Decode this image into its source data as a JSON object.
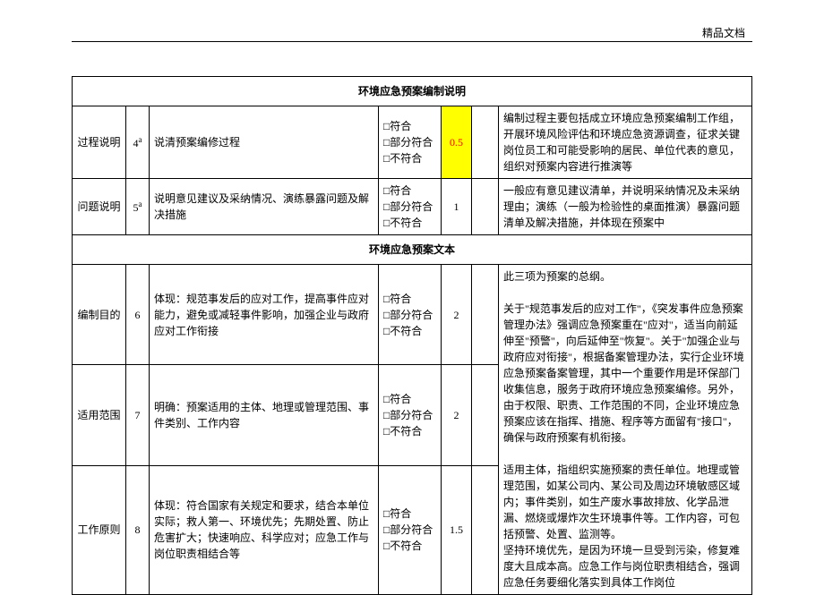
{
  "header_label": "精品文档",
  "section1_title": "环境应急预案编制说明",
  "section2_title": "环境应急预案文本",
  "checkbox_labels": {
    "a": "□符合",
    "b": "□部分符合",
    "c": "□不符合"
  },
  "rows": {
    "r1": {
      "label": "过程说明",
      "num": "4",
      "sup": "a",
      "content": "说清预案编修过程",
      "score": "0.5",
      "remarks": "编制过程主要包括成立环境应急预案编制工作组，开展环境风险评估和环境应急资源调查，征求关键岗位员工和可能受影响的居民、单位代表的意见，组织对预案内容进行推演等"
    },
    "r2": {
      "label": "问题说明",
      "num": "5",
      "sup": "a",
      "content": "说明意见建议及采纳情况、演练暴露问题及解决措施",
      "score": "1",
      "remarks": "一般应有意见建议清单，并说明采纳情况及未采纳理由；演练（一般为检验性的桌面推演）暴露问题清单及解决措施，并体现在预案中"
    },
    "r3": {
      "label": "编制目的",
      "num": "6",
      "content": "体现：规范事发后的应对工作，提高事件应对能力，避免或减轻事件影响，加强企业与政府应对工作衔接",
      "score": "2"
    },
    "r4": {
      "label": "适用范围",
      "num": "7",
      "content": "明确：预案适用的主体、地理或管理范围、事件类别、工作内容",
      "score": "2"
    },
    "r5": {
      "label": "工作原则",
      "num": "8",
      "content": "体现：符合国家有关规定和要求，结合本单位实际；救人第一、环境优先；先期处置、防止危害扩大；快速响应、科学应对；应急工作与岗位职责相结合等",
      "score": "1.5"
    },
    "merged_remark": "此三项为预案的总纲。\n\n关于\"规范事发后的应对工作\"，《突发事件应急预案管理办法》强调应急预案重在\"应对\"，适当向前延伸至\"预警\"，向后延伸至\"恢复\"。关于\"加强企业与政府应对衔接\"，根据备案管理办法，实行企业环境应急预案备案管理，其中一个重要作用是环保部门收集信息，服务于政府环境应急预案编修。另外，由于权限、职责、工作范围的不同，企业环境应急预案应该在指挥、措施、程序等方面留有\"接口\"，确保与政府预案有机衔接。\n\n适用主体，指组织实施预案的责任单位。地理或管理范围，如某公司内、某公司及周边环境敏感区域内；事件类别，如生产废水事故排放、化学品泄漏、燃烧或爆炸次生环境事件等。工作内容，可包括预警、处置、监测等。\n坚持环境优先，是因为环境一旦受到污染，修复难度大且成本高。应急工作与岗位职责相结合，强调应急任务要细化落实到具体工作岗位"
  }
}
